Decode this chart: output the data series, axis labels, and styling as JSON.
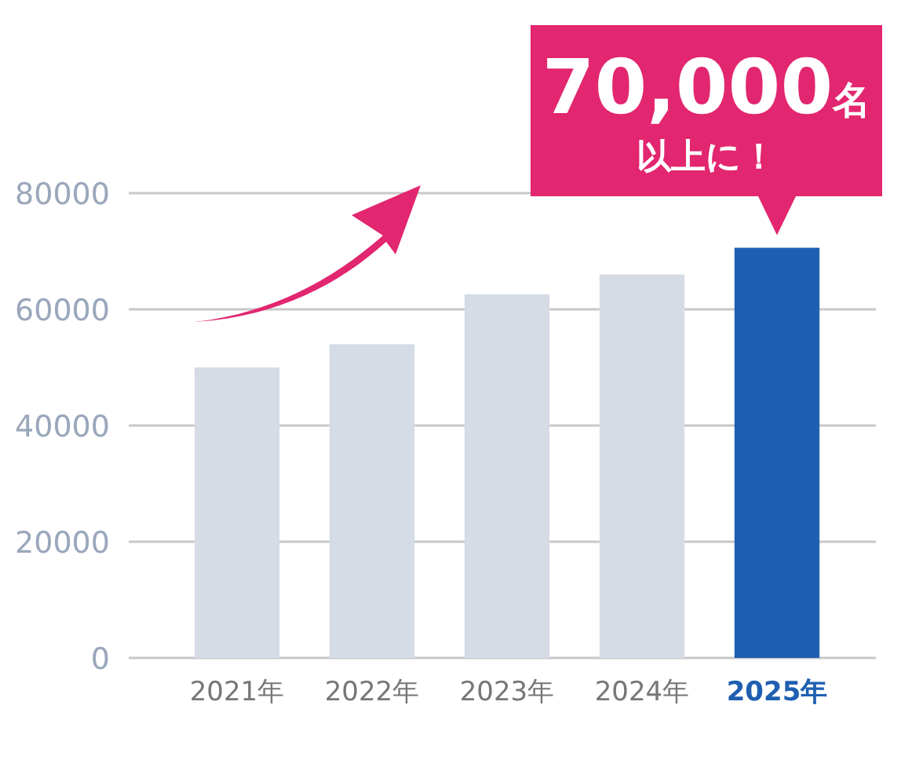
{
  "chart_data": {
    "type": "bar",
    "categories": [
      "2021年",
      "2022年",
      "2023年",
      "2024年",
      "2025年"
    ],
    "values": [
      50000,
      54000,
      62600,
      66000,
      70600
    ],
    "colors": [
      "#d5dce6",
      "#d5dce6",
      "#d5dce6",
      "#d5dce6",
      "#1f5fb1"
    ],
    "ylim": [
      0,
      80000
    ],
    "yticks": [
      0,
      20000,
      40000,
      60000,
      80000
    ],
    "grid": "y",
    "annotations": [
      "70,000名以上に！"
    ]
  }
}
